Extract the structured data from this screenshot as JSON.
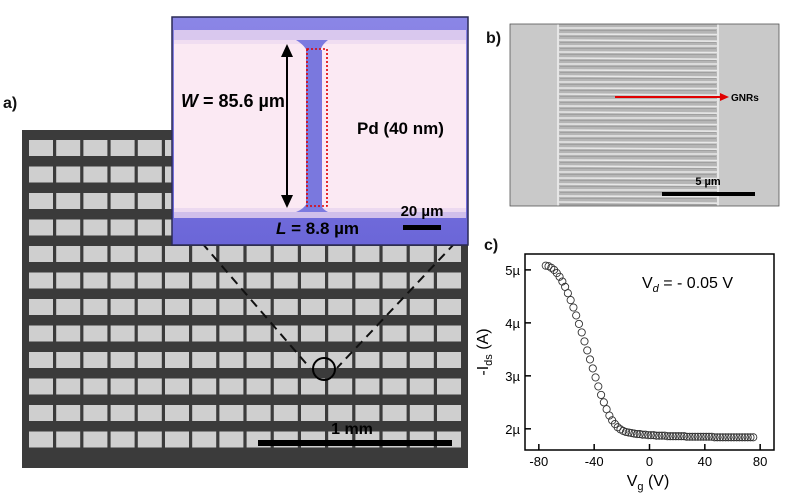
{
  "panels": {
    "a": {
      "letter": "a)",
      "scale_label": "1 mm",
      "inset": {
        "width_label_var": "W",
        "width_label_rest": " = 85.6 µm",
        "length_label_var": "L",
        "length_label_rest": " = 8.8 µm",
        "material_label": "Pd (40 nm)",
        "scale_label": "20 µm"
      }
    },
    "b": {
      "letter": "b)",
      "arrow_label": "GNRs",
      "scale_label": "5 µm"
    },
    "c": {
      "letter": "c)",
      "annotation_main": "V",
      "annotation_sub": "d",
      "annotation_rest": " = - 0.05 V",
      "ylabel_main": "-I",
      "ylabel_sub": "ds",
      "ylabel_rest": " (A)",
      "xlabel_main": "V",
      "xlabel_sub": "g",
      "xlabel_rest": " (V)"
    }
  },
  "chart_data": {
    "type": "scatter",
    "xlim": [
      -90,
      90
    ],
    "ylim": [
      1.6,
      5.3
    ],
    "x_ticks": [
      -80,
      -40,
      0,
      40,
      80
    ],
    "x_tick_labels": [
      "-80",
      "-40",
      "0",
      "40",
      "80"
    ],
    "y_ticks": [
      2,
      3,
      4,
      5
    ],
    "y_tick_labels": [
      "2µ",
      "3µ",
      "4µ",
      "5µ"
    ],
    "marker": "open-circle",
    "x": [
      -75,
      -73,
      -71,
      -69,
      -67,
      -65,
      -63,
      -61,
      -59,
      -57,
      -55,
      -53,
      -51,
      -49,
      -47,
      -45,
      -43,
      -41,
      -39,
      -37,
      -35,
      -33,
      -31,
      -29,
      -27,
      -25,
      -23,
      -21,
      -19,
      -17,
      -15,
      -13,
      -11,
      -9,
      -7,
      -5,
      -3,
      -1,
      1,
      3,
      5,
      7,
      9,
      11,
      13,
      15,
      17,
      19,
      21,
      23,
      25,
      27,
      29,
      31,
      33,
      35,
      37,
      39,
      41,
      43,
      45,
      47,
      49,
      51,
      53,
      55,
      57,
      59,
      61,
      63,
      65,
      67,
      69,
      71,
      73,
      75
    ],
    "y": [
      5.08,
      5.07,
      5.04,
      5.0,
      4.94,
      4.87,
      4.78,
      4.68,
      4.56,
      4.43,
      4.29,
      4.14,
      3.98,
      3.82,
      3.65,
      3.48,
      3.31,
      3.14,
      2.97,
      2.8,
      2.64,
      2.5,
      2.37,
      2.25,
      2.16,
      2.09,
      2.03,
      1.99,
      1.96,
      1.94,
      1.93,
      1.92,
      1.91,
      1.9,
      1.9,
      1.89,
      1.89,
      1.88,
      1.88,
      1.88,
      1.87,
      1.87,
      1.87,
      1.87,
      1.86,
      1.86,
      1.86,
      1.86,
      1.86,
      1.86,
      1.86,
      1.85,
      1.85,
      1.85,
      1.85,
      1.85,
      1.85,
      1.85,
      1.85,
      1.85,
      1.85,
      1.84,
      1.84,
      1.84,
      1.84,
      1.84,
      1.84,
      1.84,
      1.84,
      1.84,
      1.84,
      1.84,
      1.84,
      1.84,
      1.84,
      1.84
    ]
  }
}
